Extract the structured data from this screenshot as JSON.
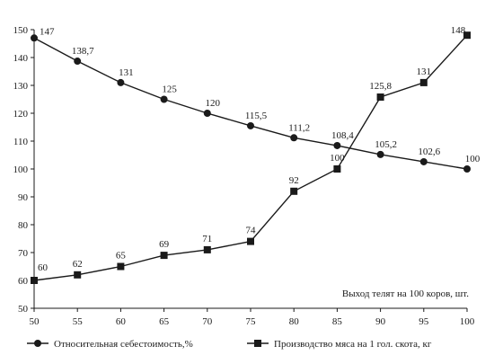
{
  "chart_data": {
    "type": "line",
    "x": [
      50,
      55,
      60,
      65,
      70,
      75,
      80,
      85,
      90,
      95,
      100
    ],
    "series": [
      {
        "name": "Относительная себестоимость,%",
        "values": [
          147,
          138.7,
          131,
          125,
          120,
          115.5,
          111.2,
          108.4,
          105.2,
          102.6,
          100
        ],
        "labels": [
          "147",
          "138,7",
          "131",
          "125",
          "120",
          "115,5",
          "111,2",
          "108,4",
          "105,2",
          "102,6",
          "100"
        ],
        "marker": "circle"
      },
      {
        "name": "Производство мяса на 1 гол. скота, кг",
        "values": [
          60,
          62,
          65,
          69,
          71,
          74,
          92,
          100,
          125.8,
          131,
          148
        ],
        "labels": [
          "60",
          "62",
          "65",
          "69",
          "71",
          "74",
          "92",
          "100",
          "125,8",
          "131",
          "148"
        ],
        "marker": "square"
      }
    ],
    "x_ticks": [
      "50",
      "55",
      "60",
      "65",
      "70",
      "75",
      "80",
      "85",
      "90",
      "95",
      "100"
    ],
    "y_ticks": [
      "50",
      "60",
      "70",
      "80",
      "90",
      "100",
      "110",
      "120",
      "130",
      "140",
      "150"
    ],
    "xlim": [
      50,
      100
    ],
    "ylim": [
      50,
      150
    ],
    "annotation": "Выход телят на 100 коров, шт.",
    "grid": false,
    "legend": "bottom",
    "color": "#1a1a1a"
  }
}
